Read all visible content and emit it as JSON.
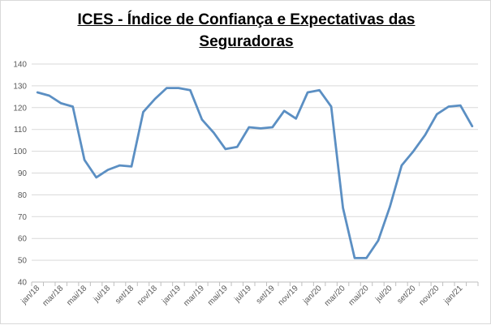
{
  "chart_data": {
    "type": "line",
    "title_line1": "ICES - Índice de Confiança e Expectativas das",
    "title_line2": "Seguradoras",
    "xlabel": "",
    "ylabel": "",
    "ylim": [
      40,
      140
    ],
    "yticks": [
      40,
      50,
      60,
      70,
      80,
      90,
      100,
      110,
      120,
      130,
      140
    ],
    "grid": true,
    "legend": "none",
    "x": [
      "jan/18",
      "fev/18",
      "mar/18",
      "abr/18",
      "mai/18",
      "jun/18",
      "jul/18",
      "ago/18",
      "set/18",
      "out/18",
      "nov/18",
      "dez/18",
      "jan/19",
      "fev/19",
      "mar/19",
      "abr/19",
      "mai/19",
      "jun/19",
      "jul/19",
      "ago/19",
      "set/19",
      "out/19",
      "nov/19",
      "dez/19",
      "jan/20",
      "fev/20",
      "mar/20",
      "abr/20",
      "mai/20",
      "jun/20",
      "jul/20",
      "ago/20",
      "set/20",
      "out/20",
      "nov/20",
      "dez/20",
      "jan/21",
      "fev/21"
    ],
    "xtick_labels": [
      "jan/18",
      "mar/18",
      "mai/18",
      "jul/18",
      "set/18",
      "nov/18",
      "jan/19",
      "mar/19",
      "mai/19",
      "jul/19",
      "set/19",
      "nov/19",
      "jan/20",
      "mar/20",
      "mai/20",
      "jul/20",
      "set/20",
      "nov/20",
      "jan/21"
    ],
    "series": [
      {
        "name": "ICES",
        "color": "#5b8fc3",
        "values": [
          127,
          125.5,
          122,
          120.5,
          96,
          88,
          91.5,
          93.5,
          93,
          118,
          124,
          129,
          129,
          128,
          114.5,
          108.5,
          101,
          102,
          111,
          110.5,
          111,
          118.5,
          115,
          127,
          128,
          120.5,
          74,
          51,
          51,
          59,
          74.5,
          93.5,
          100,
          107.5,
          117,
          120.5,
          121,
          111.5
        ]
      }
    ]
  }
}
